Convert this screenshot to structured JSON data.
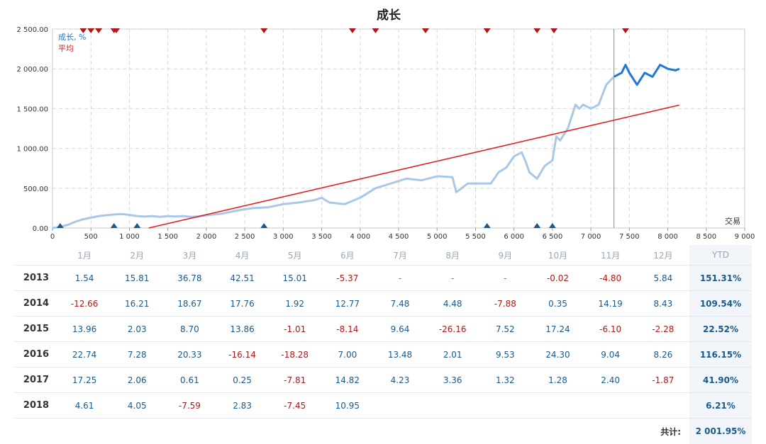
{
  "chart_data": {
    "type": "line",
    "title": "成长",
    "xlabel": "交易",
    "ylabel": "",
    "xlim": [
      0,
      9000
    ],
    "ylim": [
      0,
      2500
    ],
    "x_ticks": [
      0,
      500,
      1000,
      1500,
      2000,
      2500,
      3000,
      3500,
      4000,
      4500,
      5000,
      5500,
      6000,
      6500,
      7000,
      7500,
      8000,
      8500,
      9000
    ],
    "x_tick_labels": [
      "0",
      "500",
      "1 000",
      "1 500",
      "2 000",
      "2 500",
      "3 000",
      "3 500",
      "4 000",
      "4 500",
      "5 000",
      "5 500",
      "6 000",
      "6 500",
      "7 000",
      "7 500",
      "8 000",
      "8 500",
      "9 000"
    ],
    "y_ticks": [
      0,
      500,
      1000,
      1500,
      2000,
      2500
    ],
    "y_tick_labels": [
      "0.00",
      "500.00",
      "1 000.00",
      "1 500.00",
      "2 000.00",
      "2 500.00"
    ],
    "grid": true,
    "legend": "top-left",
    "highlight_from_x": 7300,
    "series": [
      {
        "name": "成长, %",
        "color": "#a9c8e6",
        "highlight_color": "#1f78d1",
        "x": [
          0,
          100,
          200,
          300,
          400,
          500,
          600,
          700,
          800,
          900,
          1000,
          1100,
          1200,
          1300,
          1400,
          1500,
          1600,
          1700,
          1800,
          1900,
          2000,
          2200,
          2400,
          2600,
          2800,
          3000,
          3200,
          3400,
          3500,
          3600,
          3800,
          4000,
          4200,
          4400,
          4600,
          4800,
          5000,
          5200,
          5250,
          5400,
          5600,
          5700,
          5800,
          5900,
          6000,
          6100,
          6150,
          6200,
          6300,
          6400,
          6500,
          6550,
          6600,
          6700,
          6800,
          6850,
          6900,
          7000,
          7100,
          7200,
          7300,
          7400,
          7450,
          7500,
          7600,
          7700,
          7800,
          7900,
          8000,
          8100,
          8150
        ],
        "values": [
          0,
          15,
          40,
          80,
          110,
          130,
          150,
          160,
          170,
          175,
          165,
          150,
          145,
          150,
          140,
          150,
          145,
          150,
          140,
          145,
          160,
          180,
          220,
          250,
          260,
          300,
          320,
          350,
          380,
          320,
          300,
          380,
          500,
          560,
          620,
          600,
          650,
          640,
          450,
          560,
          560,
          560,
          700,
          760,
          900,
          950,
          840,
          700,
          620,
          780,
          850,
          1150,
          1100,
          1250,
          1550,
          1500,
          1550,
          1500,
          1550,
          1800,
          1900,
          1950,
          2050,
          1950,
          1800,
          1950,
          1900,
          2050,
          2000,
          1980,
          2000
        ]
      },
      {
        "name": "平均",
        "color": "#e02020",
        "x": [
          1250,
          8150
        ],
        "values": [
          0,
          1545
        ]
      }
    ],
    "markers": {
      "top_red": [
        400,
        500,
        600,
        800,
        830,
        2750,
        3900,
        4200,
        4850,
        5650,
        6300,
        6520,
        7450
      ],
      "bottom_blue": [
        100,
        800,
        1100,
        2750,
        5650,
        6300,
        6500
      ]
    }
  },
  "table": {
    "headers": [
      "",
      "1月",
      "2月",
      "3月",
      "4月",
      "5月",
      "6月",
      "7月",
      "8月",
      "9月",
      "10月",
      "11月",
      "12月",
      "YTD"
    ],
    "rows": [
      {
        "year": "2013",
        "cells": [
          "1.54",
          "15.81",
          "36.78",
          "42.51",
          "15.01",
          "-5.37",
          "-",
          "-",
          "-",
          "-0.02",
          "-4.80",
          "5.84"
        ],
        "ytd": "151.31%"
      },
      {
        "year": "2014",
        "cells": [
          "-12.66",
          "16.21",
          "18.67",
          "17.76",
          "1.92",
          "12.77",
          "7.48",
          "4.48",
          "-7.88",
          "0.35",
          "14.19",
          "8.43"
        ],
        "ytd": "109.54%"
      },
      {
        "year": "2015",
        "cells": [
          "13.96",
          "2.03",
          "8.70",
          "13.86",
          "-1.01",
          "-8.14",
          "9.64",
          "-26.16",
          "7.52",
          "17.24",
          "-6.10",
          "-2.28"
        ],
        "ytd": "22.52%"
      },
      {
        "year": "2016",
        "cells": [
          "22.74",
          "7.28",
          "20.33",
          "-16.14",
          "-18.28",
          "7.00",
          "13.48",
          "2.01",
          "9.53",
          "24.30",
          "9.04",
          "8.26"
        ],
        "ytd": "116.15%"
      },
      {
        "year": "2017",
        "cells": [
          "17.25",
          "2.06",
          "0.61",
          "0.25",
          "-7.81",
          "14.82",
          "4.23",
          "3.36",
          "1.32",
          "1.28",
          "2.40",
          "-1.87"
        ],
        "ytd": "41.90%"
      },
      {
        "year": "2018",
        "cells": [
          "4.61",
          "4.05",
          "-7.59",
          "2.83",
          "-7.45",
          "10.95",
          "",
          "",
          "",
          "",
          "",
          ""
        ],
        "ytd": "6.21%"
      }
    ],
    "total_label": "共计:",
    "total_value": "2 001.95%"
  }
}
